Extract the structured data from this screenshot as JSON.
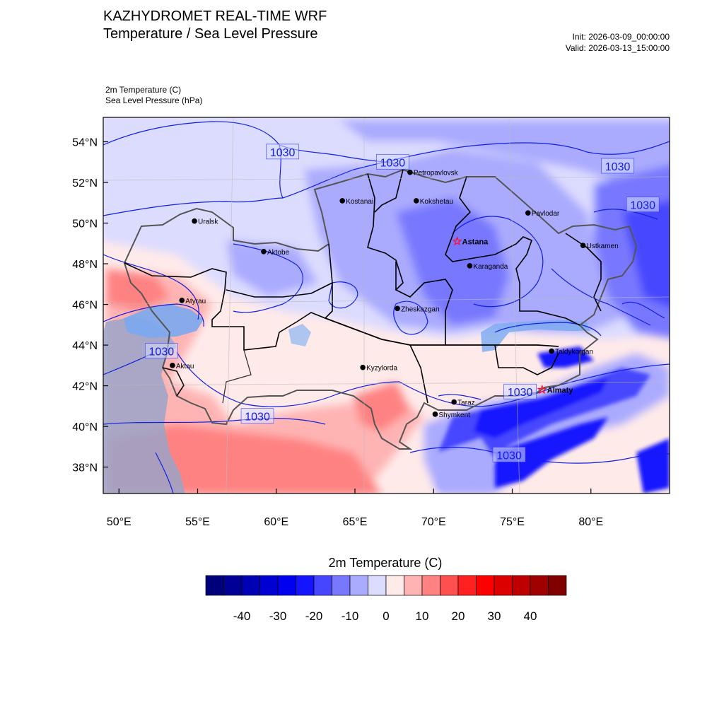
{
  "header": {
    "title_line1": "KAZHYDROMET REAL-TIME WRF",
    "title_line2": "Temperature / Sea Level Pressure",
    "init": "Init: 2026-03-09_00:00:00",
    "valid": "Valid: 2026-03-13_15:00:00",
    "field1": "2m Temperature   (C)",
    "field2": "Sea Level Pressure   (hPa)"
  },
  "map": {
    "lon_range": [
      49,
      85
    ],
    "lat_range": [
      36.7,
      55.2
    ],
    "lat_ticks": [
      {
        "value": 54,
        "label": "54°N"
      },
      {
        "value": 52,
        "label": "52°N"
      },
      {
        "value": 50,
        "label": "50°N"
      },
      {
        "value": 48,
        "label": "48°N"
      },
      {
        "value": 46,
        "label": "46°N"
      },
      {
        "value": 44,
        "label": "44°N"
      },
      {
        "value": 42,
        "label": "42°N"
      },
      {
        "value": 40,
        "label": "40°N"
      },
      {
        "value": 38,
        "label": "38°N"
      }
    ],
    "lon_ticks": [
      {
        "value": 50,
        "label": "50°E"
      },
      {
        "value": 55,
        "label": "55°E"
      },
      {
        "value": 60,
        "label": "60°E"
      },
      {
        "value": 65,
        "label": "65°E"
      },
      {
        "value": 70,
        "label": "70°E"
      },
      {
        "value": 75,
        "label": "75°E"
      },
      {
        "value": 80,
        "label": "80°E"
      }
    ],
    "cities": [
      {
        "name": "Petropavlovsk",
        "lon": 68.5,
        "lat": 52.5,
        "marker": "dot"
      },
      {
        "name": "Kostanai",
        "lon": 64.2,
        "lat": 51.1,
        "marker": "dot"
      },
      {
        "name": "Kokshetau",
        "lon": 68.9,
        "lat": 51.1,
        "marker": "dot"
      },
      {
        "name": "Pavlodar",
        "lon": 76.0,
        "lat": 50.5,
        "marker": "dot"
      },
      {
        "name": "Uralsk",
        "lon": 54.8,
        "lat": 50.1,
        "marker": "dot"
      },
      {
        "name": "Astana",
        "lon": 71.5,
        "lat": 49.1,
        "marker": "star"
      },
      {
        "name": "Ustkamen",
        "lon": 79.5,
        "lat": 48.9,
        "marker": "dot"
      },
      {
        "name": "Aktobe",
        "lon": 59.2,
        "lat": 48.6,
        "marker": "dot"
      },
      {
        "name": "Karaganda",
        "lon": 72.3,
        "lat": 47.9,
        "marker": "dot"
      },
      {
        "name": "Atyrau",
        "lon": 54.0,
        "lat": 46.2,
        "marker": "dot"
      },
      {
        "name": "Zheskazgan",
        "lon": 67.7,
        "lat": 45.8,
        "marker": "dot"
      },
      {
        "name": "Taldykorgan",
        "lon": 77.5,
        "lat": 43.7,
        "marker": "dot"
      },
      {
        "name": "Aktau",
        "lon": 53.4,
        "lat": 43.0,
        "marker": "dot"
      },
      {
        "name": "Kyzylorda",
        "lon": 65.5,
        "lat": 42.9,
        "marker": "dot"
      },
      {
        "name": "Almaty",
        "lon": 76.9,
        "lat": 41.8,
        "marker": "star"
      },
      {
        "name": "Taraz",
        "lon": 71.3,
        "lat": 41.2,
        "marker": "dot"
      },
      {
        "name": "Shymkent",
        "lon": 70.1,
        "lat": 40.6,
        "marker": "dot"
      }
    ],
    "pressure_labels": [
      {
        "text": "1030",
        "lon": 60.4,
        "lat": 53.5
      },
      {
        "text": "1030",
        "lon": 67.4,
        "lat": 53.0
      },
      {
        "text": "1030",
        "lon": 81.7,
        "lat": 52.8
      },
      {
        "text": "1030",
        "lon": 83.3,
        "lat": 50.9
      },
      {
        "text": "1030",
        "lon": 52.7,
        "lat": 43.7
      },
      {
        "text": "1030",
        "lon": 58.8,
        "lat": 40.5
      },
      {
        "text": "1030",
        "lon": 75.5,
        "lat": 41.7
      },
      {
        "text": "1030",
        "lon": 74.8,
        "lat": 38.6
      }
    ]
  },
  "colorbar": {
    "title": "2m Temperature  (C)",
    "colors": [
      "#00007a",
      "#000096",
      "#0000b4",
      "#0000d2",
      "#0000f0",
      "#1414ff",
      "#4646ff",
      "#7878ff",
      "#aaaaff",
      "#dcdcff",
      "#ffeaea",
      "#ffb4b4",
      "#ff8282",
      "#ff5050",
      "#ff2020",
      "#ff0000",
      "#dc0000",
      "#be0000",
      "#a00000",
      "#800000"
    ],
    "tick_labels": [
      "-40",
      "-30",
      "-20",
      "-10",
      "0",
      "10",
      "20",
      "30",
      "40"
    ]
  }
}
